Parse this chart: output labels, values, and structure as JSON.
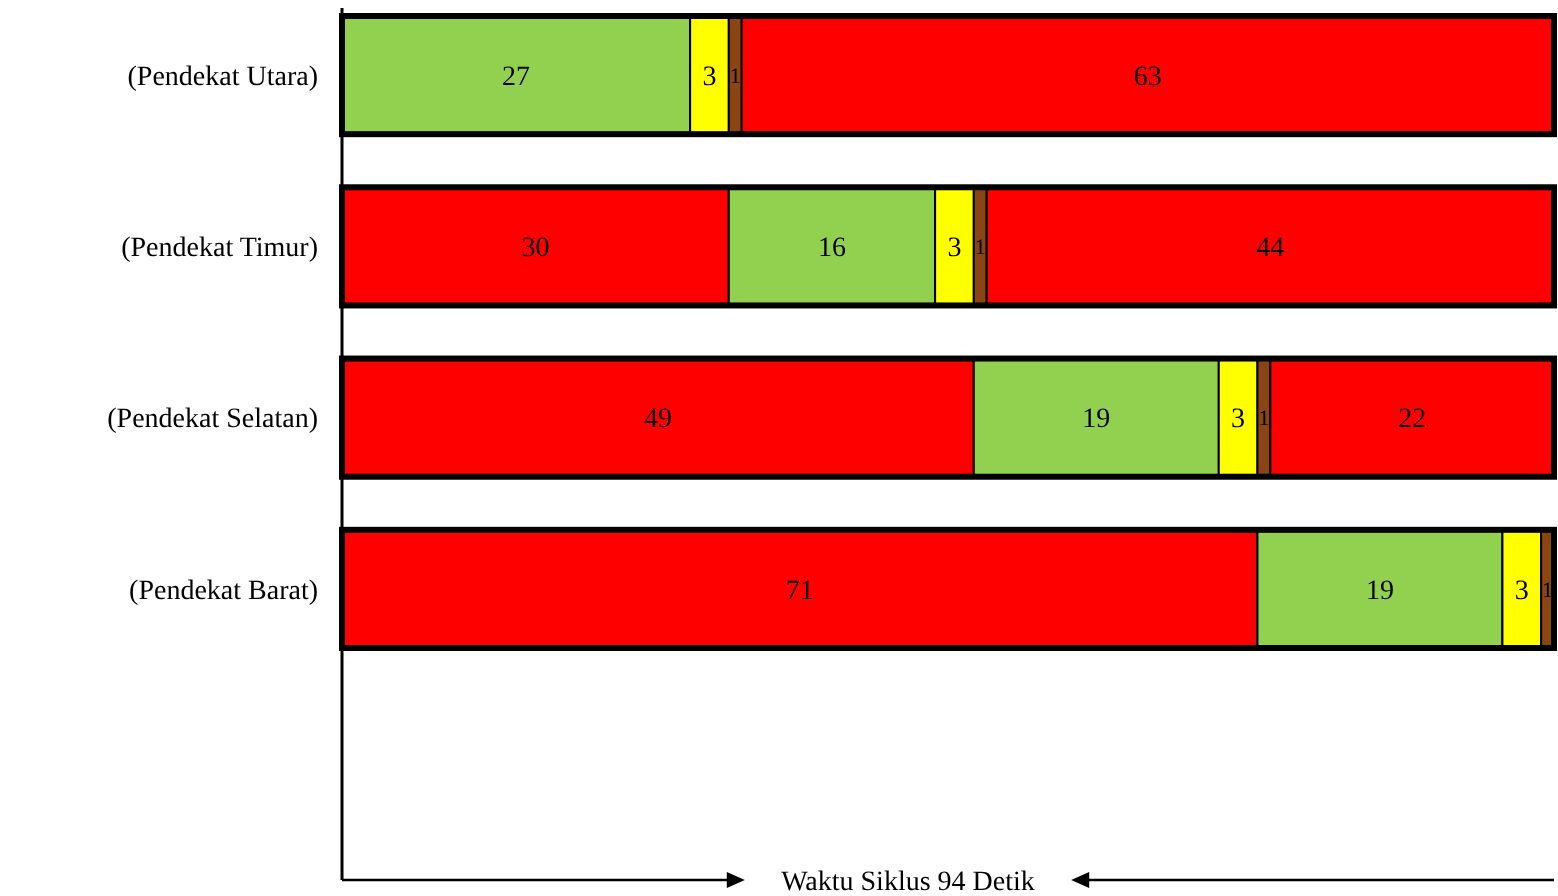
{
  "chart_data": {
    "type": "bar",
    "orientation": "horizontal",
    "stacked": true,
    "data_labels": true,
    "tick_labels": "y",
    "annotations": [
      "Waktu Siklus 94 Detik"
    ],
    "categories": [
      "(Pendekat Utara)",
      "(Pendekat Timur)",
      "(Pendekat Selatan)",
      "(Pendekat Barat)"
    ],
    "series": [
      {
        "colors": [
          "#92d050",
          "#ff0000",
          "#ff0000",
          "#ff0000"
        ],
        "values": [
          27,
          30,
          49,
          71
        ]
      },
      {
        "colors": [
          "#ffff00",
          "#92d050",
          "#92d050",
          "#92d050"
        ],
        "values": [
          3,
          16,
          19,
          19
        ]
      },
      {
        "colors": [
          "#8b4513",
          "#ffff00",
          "#ffff00",
          "#ffff00"
        ],
        "values": [
          1,
          3,
          3,
          3
        ]
      },
      {
        "colors": [
          "#ff0000",
          "#8b4513",
          "#8b4513",
          "#8b4513"
        ],
        "values": [
          63,
          1,
          1,
          1
        ]
      },
      {
        "colors": [
          null,
          "#ff0000",
          "#ff0000",
          null
        ],
        "values": [
          null,
          44,
          22,
          null
        ]
      }
    ]
  }
}
